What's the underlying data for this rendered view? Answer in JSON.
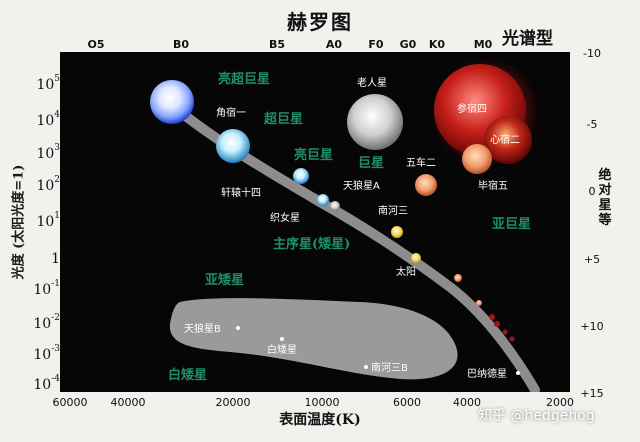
{
  "title": "赫罗图",
  "spectral": {
    "title": "光谱型",
    "classes": [
      "O5",
      "B0",
      "B5",
      "A0",
      "F0",
      "G0",
      "K0",
      "M0"
    ]
  },
  "left_axis": {
    "title": "光度 (太阳光度=1)",
    "ticks": [
      {
        "base": "10",
        "exp": "5"
      },
      {
        "base": "10",
        "exp": "4"
      },
      {
        "base": "10",
        "exp": "3"
      },
      {
        "base": "10",
        "exp": "2"
      },
      {
        "base": "10",
        "exp": "1"
      },
      {
        "base": "1",
        "exp": ""
      },
      {
        "base": "10",
        "exp": "-1"
      },
      {
        "base": "10",
        "exp": "-2"
      },
      {
        "base": "10",
        "exp": "-3"
      },
      {
        "base": "10",
        "exp": "-4"
      }
    ]
  },
  "right_axis": {
    "title": "绝对星等",
    "ticks": [
      "-10",
      "-5",
      "0",
      "+5",
      "+10",
      "+15"
    ]
  },
  "bottom_axis": {
    "title": "表面温度(K)",
    "ticks": [
      "60000",
      "40000",
      "20000",
      "10000",
      "6000",
      "4000",
      "2000"
    ]
  },
  "regions": {
    "supergiant_bright": "亮超巨星",
    "supergiant": "超巨星",
    "bright_giant": "亮巨星",
    "giant": "巨星",
    "subgiant": "亚巨星",
    "main_sequence": "主序星(矮星)",
    "subdwarf": "亚矮星",
    "white_dwarf": "白矮星"
  },
  "stars": {
    "rigel": "角宿一",
    "old_star": "老人星",
    "betelgeuse": "参宿四",
    "antares": "心宿二",
    "capella": "五车二",
    "aldebaran": "毕宿五",
    "regulus": "轩辕十四",
    "sirius_a": "天狼星A",
    "vega": "织女星",
    "procyon": "南河三",
    "sun": "太阳",
    "sirius_b": "天狼星B",
    "white_dwarf_star": "白矮星",
    "procyon_b": "南河三B",
    "barnard": "巴纳德星"
  },
  "watermark": "知乎 @hedgehog",
  "colors": {
    "background": "#060606",
    "region_text": "#1f8f67",
    "label_text": "#ffffff",
    "main_sequence": "#8d8d8d",
    "white_dwarf_region": "#9a9a9a"
  }
}
